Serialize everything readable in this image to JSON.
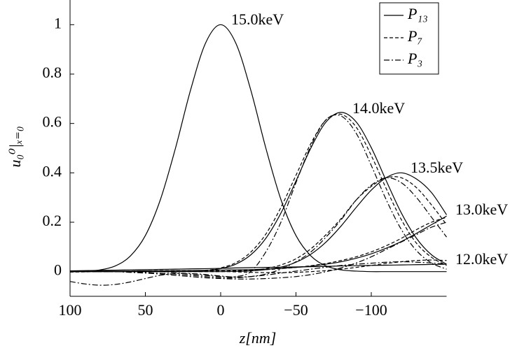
{
  "chart_data": {
    "type": "line",
    "xlabel": "z[nm]",
    "ylabel": "u₀⁰|ₓ₌₀",
    "x": [
      100,
      90,
      80,
      70,
      60,
      50,
      40,
      30,
      20,
      10,
      0,
      -10,
      -20,
      -30,
      -40,
      -50,
      -60,
      -70,
      -80,
      -90,
      -100,
      -110,
      -120,
      -130,
      -140,
      -150
    ],
    "xlim": [
      100,
      -150
    ],
    "xticks": [
      {
        "value": 100,
        "label": "100"
      },
      {
        "value": 50,
        "label": "50"
      },
      {
        "value": 0,
        "label": "0"
      },
      {
        "value": -50,
        "label": "−50"
      },
      {
        "value": -100,
        "label": "−100"
      }
    ],
    "ylim": [
      -0.1,
      1.1
    ],
    "yticks": [
      0,
      0.2,
      0.4,
      0.6,
      0.8,
      1
    ],
    "grid": false,
    "legend": "upper right",
    "annotations": [
      "15.0keV",
      "14.0keV",
      "13.5keV",
      "13.0keV",
      "12.0keV"
    ],
    "series": [
      {
        "name": "P₁₃",
        "color": "#000000",
        "style": "solid",
        "values": [
          0,
          0.002,
          0.007,
          0.023,
          0.063,
          0.146,
          0.292,
          0.5,
          0.735,
          0.926,
          1,
          0.926,
          0.735,
          0.5,
          0.292,
          0.146,
          0.063,
          0.023,
          0.007,
          0.002,
          0,
          0,
          0,
          0,
          0,
          0
        ]
      },
      {
        "name": "P₇",
        "color": "#000000",
        "style": "dashed",
        "values": [
          0,
          0,
          0,
          0,
          0,
          0,
          0,
          0,
          0.002,
          0.005,
          0.015,
          0.036,
          0.079,
          0.152,
          0.26,
          0.39,
          0.52,
          0.615,
          0.637,
          0.585,
          0.47,
          0.335,
          0.21,
          0.115,
          0.058,
          0.025
        ]
      },
      {
        "name": "P₃",
        "color": "#000000",
        "style": "dashdot",
        "values": [
          0,
          0,
          0,
          0,
          0,
          0,
          0,
          -0.005,
          -0.01,
          -0.015,
          -0.02,
          -0.02,
          0.0,
          0.08,
          0.2,
          0.36,
          0.51,
          0.615,
          0.63,
          0.56,
          0.43,
          0.29,
          0.17,
          0.085,
          0.035,
          0.01
        ]
      },
      {
        "name": "P₁₃",
        "color": "#000000",
        "style": "solid",
        "values": [
          0,
          0,
          0,
          0,
          0,
          0,
          0,
          0,
          0.001,
          0.004,
          0.012,
          0.03,
          0.068,
          0.135,
          0.237,
          0.367,
          0.502,
          0.606,
          0.645,
          0.606,
          0.502,
          0.367,
          0.237,
          0.135,
          0.068,
          0.03
        ]
      },
      {
        "name": "P₁₃",
        "color": "#000000",
        "style": "solid",
        "values": [
          0,
          0,
          0,
          0,
          0,
          0,
          0,
          0,
          0,
          0,
          0,
          0.001,
          0.003,
          0.008,
          0.018,
          0.038,
          0.071,
          0.12,
          0.185,
          0.26,
          0.33,
          0.381,
          0.4,
          0.375,
          0.32,
          0.23
        ]
      },
      {
        "name": "P₇",
        "color": "#000000",
        "style": "dashed",
        "values": [
          0,
          0,
          0,
          0,
          0,
          0,
          0,
          0,
          0,
          0,
          0,
          0.002,
          0.005,
          0.012,
          0.027,
          0.052,
          0.093,
          0.15,
          0.215,
          0.29,
          0.345,
          0.38,
          0.38,
          0.34,
          0.27,
          0.19
        ]
      },
      {
        "name": "P₃",
        "color": "#000000",
        "style": "dashdot",
        "values": [
          0,
          0,
          0,
          0,
          -0.002,
          -0.004,
          -0.007,
          -0.01,
          -0.015,
          -0.02,
          -0.025,
          -0.025,
          -0.02,
          -0.01,
          0.01,
          0.04,
          0.08,
          0.14,
          0.21,
          0.29,
          0.35,
          0.38,
          0.36,
          0.3,
          0.22,
          0.14
        ]
      },
      {
        "name": "P₁₃",
        "color": "#000000",
        "style": "solid",
        "values": [
          0.001,
          0.001,
          0.002,
          0.002,
          0.002,
          0.003,
          0.003,
          0.004,
          0.004,
          0.005,
          0.006,
          0.007,
          0.008,
          0.01,
          0.013,
          0.017,
          0.022,
          0.03,
          0.04,
          0.054,
          0.072,
          0.095,
          0.122,
          0.155,
          0.19,
          0.225
        ]
      },
      {
        "name": "P₇",
        "color": "#000000",
        "style": "dashed",
        "values": [
          0,
          0,
          0.001,
          0.001,
          0.001,
          0.002,
          0.002,
          0.003,
          0.003,
          0.004,
          0.005,
          0.005,
          0.006,
          0.008,
          0.012,
          0.017,
          0.024,
          0.033,
          0.045,
          0.06,
          0.08,
          0.105,
          0.135,
          0.17,
          0.2,
          0.22
        ]
      },
      {
        "name": "P₃",
        "color": "#000000",
        "style": "dashdot",
        "values": [
          0,
          0,
          0,
          0,
          -0.003,
          -0.006,
          -0.01,
          -0.015,
          -0.02,
          -0.025,
          -0.028,
          -0.03,
          -0.03,
          -0.028,
          -0.025,
          -0.02,
          -0.012,
          0,
          0.015,
          0.035,
          0.06,
          0.09,
          0.12,
          0.15,
          0.18,
          0.2
        ]
      },
      {
        "name": "P₁₃",
        "color": "#000000",
        "style": "solid",
        "values": [
          0.003,
          0.004,
          0.005,
          0.006,
          0.007,
          0.008,
          0.009,
          0.01,
          0.011,
          0.012,
          0.013,
          0.015,
          0.016,
          0.017,
          0.018,
          0.019,
          0.02,
          0.021,
          0.023,
          0.024,
          0.025,
          0.026,
          0.027,
          0.028,
          0.029,
          0.03
        ]
      },
      {
        "name": "P₇",
        "color": "#000000",
        "style": "dashed",
        "values": [
          -0.002,
          -0.001,
          0,
          0.001,
          0.002,
          0.003,
          0.004,
          0.004,
          0.004,
          0.003,
          0.001,
          -0.001,
          -0.003,
          -0.004,
          -0.004,
          -0.003,
          0,
          0.004,
          0.01,
          0.017,
          0.025,
          0.033,
          0.04,
          0.045,
          0.047,
          0.045
        ]
      },
      {
        "name": "P₃",
        "color": "#000000",
        "style": "dashdot",
        "values": [
          -0.04,
          -0.05,
          -0.055,
          -0.052,
          -0.042,
          -0.028,
          -0.015,
          -0.008,
          -0.008,
          -0.012,
          -0.018,
          -0.022,
          -0.02,
          -0.014,
          -0.006,
          0.002,
          0.01,
          0.018,
          0.025,
          0.03,
          0.034,
          0.038,
          0.04,
          0.038,
          0.035,
          0.03
        ]
      }
    ]
  }
}
